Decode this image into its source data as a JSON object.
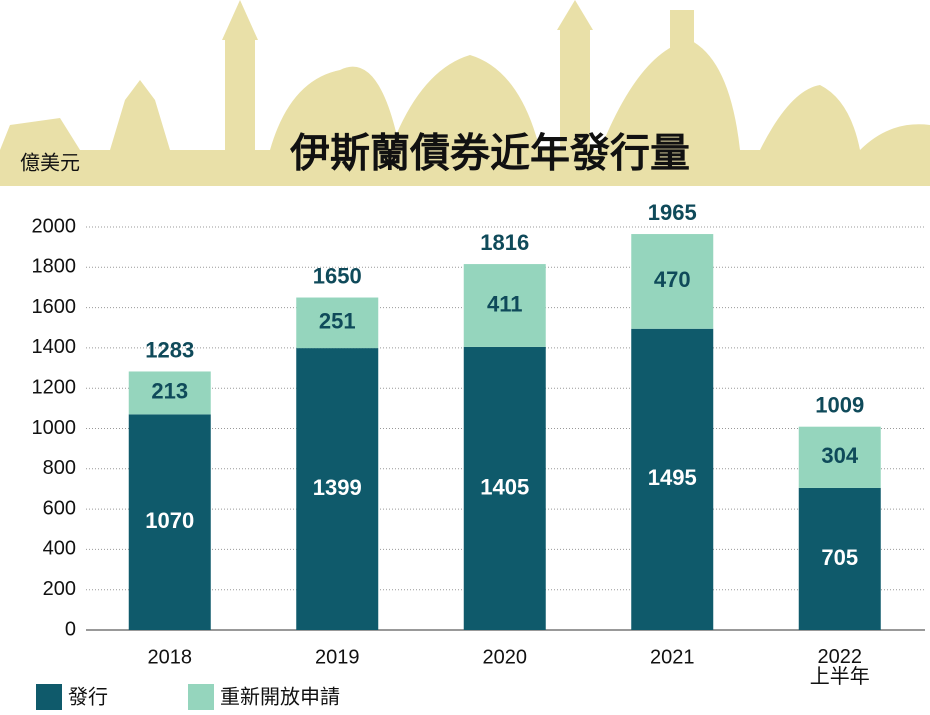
{
  "chart_data": {
    "type": "stacked-bar",
    "title": "伊斯蘭債券近年發行量",
    "y_axis_label": "億美元",
    "categories": [
      "2018",
      "2019",
      "2020",
      "2021",
      "2022\n上半年"
    ],
    "series": [
      {
        "name": "發行",
        "color": "#0f5a6b",
        "values": [
          1070,
          1399,
          1405,
          1495,
          705
        ]
      },
      {
        "name": "重新開放申請",
        "color": "#95d5bd",
        "values": [
          213,
          251,
          411,
          470,
          304
        ]
      }
    ],
    "totals": [
      1283,
      1650,
      1816,
      1965,
      1009
    ],
    "ylim": [
      0,
      2000
    ],
    "yticks": [
      0,
      200,
      400,
      600,
      800,
      1000,
      1200,
      1400,
      1600,
      1800,
      2000
    ],
    "grid": true
  }
}
